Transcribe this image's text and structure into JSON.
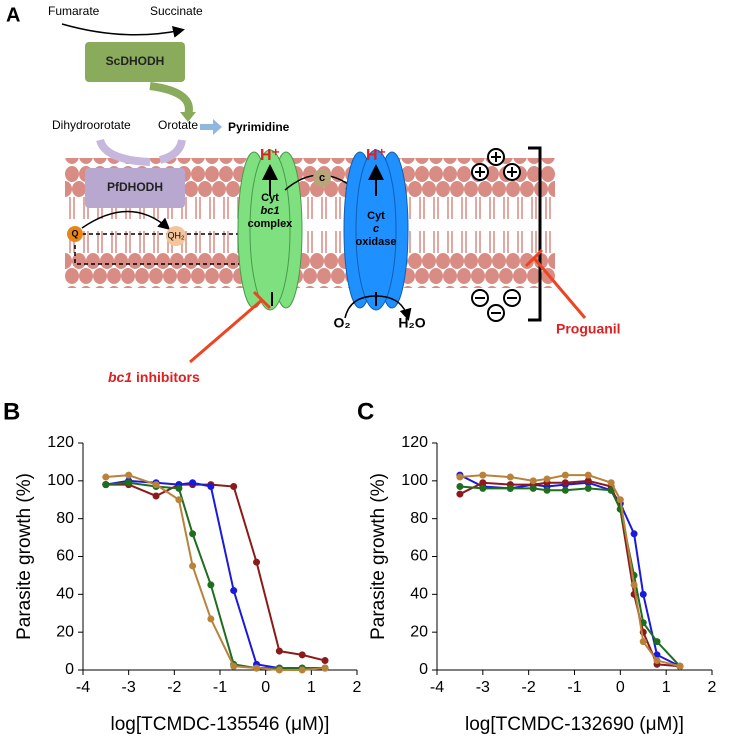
{
  "diagram": {
    "panel_label": "A",
    "fumarate": "Fumarate",
    "succinate": "Succinate",
    "sc_enzyme": "ScDHODH",
    "dihydroorotate": "Dihydroorotate",
    "orotate": "Orotate",
    "pyrimidine": "Pyrimidine",
    "pf_enzyme": "PfDHODH",
    "q": "Q",
    "qh2": "QH₂",
    "proton_1": "H⁺",
    "proton_2": "H⁺",
    "cyt_c": "c",
    "bc1_line1": "Cyt",
    "bc1_line2": "bc1",
    "bc1_line3": "complex",
    "ox_line1": "Cyt",
    "ox_line2": "c",
    "ox_line3": "oxidase",
    "o2": "O₂",
    "h2o": "H₂O",
    "proguanil": "Proguanil",
    "inhibitor_name": "bc1",
    "inhibitor_suffix": "inhibitors"
  },
  "chart_data": [
    {
      "type": "line",
      "panel_label": "B",
      "ylabel": "Parasite growth (%)",
      "xlabel": "log[TCMDC-135546 (μM)]",
      "x": [
        -3.5,
        -3,
        -2.4,
        -1.9,
        -1.6,
        -1.2,
        -0.7,
        -0.2,
        0.3,
        0.8,
        1.3
      ],
      "series": [
        {
          "color": "#8b1a1a",
          "values": [
            98,
            98,
            92,
            98,
            98,
            98,
            97,
            57,
            10,
            8,
            5
          ]
        },
        {
          "color": "#1a1adb",
          "values": [
            98,
            100,
            99,
            98,
            99,
            97,
            42,
            3,
            1,
            1,
            1
          ]
        },
        {
          "color": "#1f6e1f",
          "values": [
            98,
            99,
            97,
            96,
            72,
            45,
            3,
            1,
            1,
            1,
            1
          ]
        },
        {
          "color": "#b8823a",
          "values": [
            102,
            103,
            98,
            90,
            55,
            27,
            2,
            1,
            0,
            0,
            1
          ]
        }
      ],
      "xlim": [
        -4,
        2
      ],
      "ylim": [
        0,
        120
      ],
      "xticks": [
        -4,
        -3,
        -2,
        -1,
        0,
        1,
        2
      ],
      "yticks": [
        0,
        20,
        40,
        60,
        80,
        100,
        120
      ]
    },
    {
      "type": "line",
      "panel_label": "C",
      "ylabel": "Parasite growth (%)",
      "xlabel": "log[TCMDC-132690 (μM)]",
      "x": [
        -3.5,
        -3,
        -2.4,
        -1.9,
        -1.6,
        -1.2,
        -0.7,
        -0.2,
        0,
        0.3,
        0.5,
        0.8,
        1.3
      ],
      "series": [
        {
          "color": "#1a1adb",
          "values": [
            103,
            97,
            96,
            98,
            97,
            98,
            99,
            95,
            88,
            72,
            40,
            8,
            2
          ]
        },
        {
          "color": "#8b1a1a",
          "values": [
            93,
            99,
            98,
            98,
            99,
            99,
            100,
            97,
            85,
            40,
            20,
            3,
            2
          ]
        },
        {
          "color": "#1f6e1f",
          "values": [
            97,
            96,
            96,
            96,
            95,
            95,
            96,
            95,
            85,
            50,
            25,
            15,
            2
          ]
        },
        {
          "color": "#b8823a",
          "values": [
            102,
            103,
            102,
            100,
            101,
            103,
            103,
            99,
            90,
            45,
            15,
            5,
            2
          ]
        }
      ],
      "xlim": [
        -4,
        2
      ],
      "ylim": [
        0,
        120
      ],
      "xticks": [
        -4,
        -3,
        -2,
        -1,
        0,
        1,
        2
      ],
      "yticks": [
        0,
        20,
        40,
        60,
        80,
        100,
        120
      ]
    }
  ]
}
